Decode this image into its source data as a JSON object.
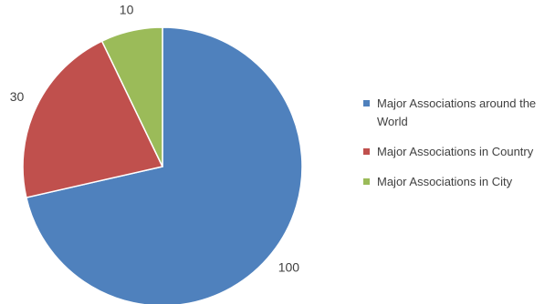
{
  "chart_data": {
    "type": "pie",
    "title": "",
    "slices": [
      {
        "label": "Major Associations around the World",
        "value": 100,
        "color": "#4f81bd"
      },
      {
        "label": "Major Associations in Country",
        "value": 30,
        "color": "#c0504d"
      },
      {
        "label": "Major Associations in City",
        "value": 10,
        "color": "#9bbb59"
      }
    ],
    "data_labels": [
      "100",
      "30",
      "10"
    ],
    "legend": {
      "position": "right",
      "entries": [
        "Major Associations around the World",
        "Major Associations in Country",
        "Major Associations in City"
      ]
    }
  }
}
